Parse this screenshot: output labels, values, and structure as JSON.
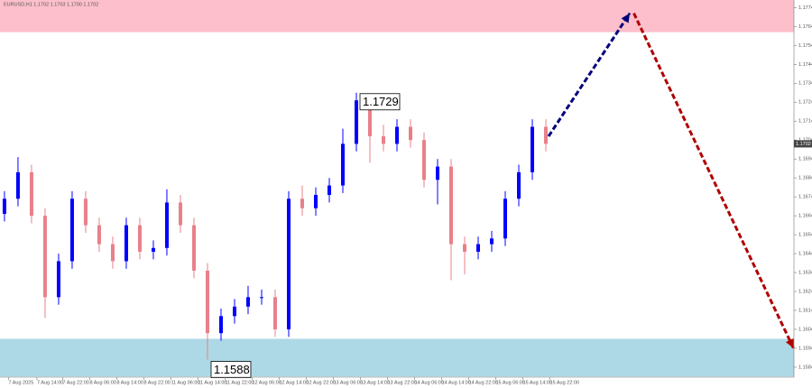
{
  "chart_data": {
    "type": "candlestick",
    "title": "EURUSD,H1 1.1702 1.1703 1.1700 1.1702",
    "x": [
      0,
      1,
      2,
      3,
      4,
      5,
      6,
      7,
      8,
      9,
      10,
      11,
      12,
      13,
      14,
      15,
      16,
      17,
      18,
      19,
      20,
      21,
      22,
      23,
      24,
      25,
      26,
      27,
      28,
      29,
      30,
      31,
      32,
      33,
      34,
      35,
      36,
      37,
      38,
      39,
      40
    ],
    "open": [
      1.1665,
      1.1673,
      1.1687,
      1.1664,
      1.1621,
      1.164,
      1.1673,
      1.1659,
      1.1649,
      1.164,
      1.1659,
      1.1645,
      1.1647,
      1.1671,
      1.1659,
      1.1635,
      1.1602,
      1.1611,
      1.1616,
      1.1621,
      1.1621,
      1.1604,
      1.1673,
      1.1668,
      1.1675,
      1.168,
      1.1702,
      1.1725,
      1.1706,
      1.1702,
      1.1711,
      1.1704,
      1.1683,
      1.169,
      1.1649,
      1.1645,
      1.1649,
      1.1652,
      1.1673,
      1.1687,
      1.1711
    ],
    "high": [
      1.1677,
      1.1695,
      1.1691,
      1.1668,
      1.1644,
      1.1677,
      1.1677,
      1.1663,
      1.1653,
      1.1663,
      1.1663,
      1.1651,
      1.1678,
      1.1675,
      1.1663,
      1.1639,
      1.1615,
      1.162,
      1.1627,
      1.1625,
      1.1625,
      1.1677,
      1.168,
      1.1679,
      1.1684,
      1.171,
      1.1729,
      1.1727,
      1.1712,
      1.1715,
      1.1715,
      1.1708,
      1.1694,
      1.1694,
      1.1653,
      1.1653,
      1.1656,
      1.1677,
      1.1691,
      1.1715,
      1.1715
    ],
    "low": [
      1.1661,
      1.1669,
      1.166,
      1.161,
      1.1617,
      1.1636,
      1.1655,
      1.1645,
      1.1636,
      1.1636,
      1.1641,
      1.1641,
      1.1643,
      1.1655,
      1.1631,
      1.1588,
      1.1598,
      1.1607,
      1.1612,
      1.1617,
      1.16,
      1.16,
      1.1664,
      1.1664,
      1.1671,
      1.1676,
      1.1698,
      1.1692,
      1.1698,
      1.1698,
      1.17,
      1.1679,
      1.167,
      1.163,
      1.1633,
      1.1641,
      1.1645,
      1.1648,
      1.1669,
      1.1683,
      1.1698
    ],
    "close": [
      1.1673,
      1.1687,
      1.1664,
      1.1621,
      1.164,
      1.1673,
      1.1659,
      1.1649,
      1.164,
      1.1659,
      1.1645,
      1.1647,
      1.1671,
      1.1659,
      1.1635,
      1.1602,
      1.1611,
      1.1616,
      1.1621,
      1.1621,
      1.1604,
      1.1673,
      1.1668,
      1.1675,
      1.168,
      1.1702,
      1.1725,
      1.1706,
      1.1702,
      1.1711,
      1.1704,
      1.1683,
      1.169,
      1.1649,
      1.1645,
      1.1649,
      1.1652,
      1.1673,
      1.1687,
      1.1711,
      1.1702
    ],
    "up_color": "#0000ff",
    "down_color": "#e8808a",
    "xlim": [
      -0.33,
      58.33
    ],
    "ylim": [
      1.1573,
      1.1778
    ],
    "xticks": [
      {
        "value": 0.3,
        "label": "7 Aug 2025"
      },
      {
        "value": 2.4,
        "label": "7 Aug 14:00"
      },
      {
        "value": 4.3,
        "label": "7 Aug 22:00"
      },
      {
        "value": 6.3,
        "label": "8 Aug 06:00"
      },
      {
        "value": 8.3,
        "label": "8 Aug 14:00"
      },
      {
        "value": 10.3,
        "label": "8 Aug 22:00"
      },
      {
        "value": 12.3,
        "label": "11 Aug 06:00"
      },
      {
        "value": 14.3,
        "label": "11 Aug 14:00"
      },
      {
        "value": 16.3,
        "label": "11 Aug 22:00"
      },
      {
        "value": 18.3,
        "label": "12 Aug 06:00"
      },
      {
        "value": 20.3,
        "label": "12 Aug 14:00"
      },
      {
        "value": 22.3,
        "label": "12 Aug 22:00"
      },
      {
        "value": 24.3,
        "label": "13 Aug 06:00"
      },
      {
        "value": 26.3,
        "label": "13 Aug 14:00"
      },
      {
        "value": 28.3,
        "label": "13 Aug 22:00"
      },
      {
        "value": 30.3,
        "label": "14 Aug 06:00"
      },
      {
        "value": 32.3,
        "label": "14 Aug 14:00"
      },
      {
        "value": 34.3,
        "label": "14 Aug 22:00"
      },
      {
        "value": 36.3,
        "label": "15 Aug 06:00"
      },
      {
        "value": 38.3,
        "label": "15 Aug 14:00"
      },
      {
        "value": 40.3,
        "label": "15 Aug 22:00"
      }
    ],
    "yticks": [
      1.1774,
      1.1764,
      1.1754,
      1.1744,
      1.1734,
      1.1724,
      1.1714,
      1.1704,
      1.1694,
      1.1684,
      1.1674,
      1.1664,
      1.1654,
      1.1644,
      1.1634,
      1.1624,
      1.1614,
      1.1604,
      1.1594,
      1.1584
    ],
    "zones": [
      {
        "color": "#fcbfcb",
        "from": 1.1761,
        "to": 1.1778
      },
      {
        "color": "#add8e6",
        "from": 1.1579,
        "to": 1.1599
      }
    ],
    "arrows": [
      {
        "color": "#00007a",
        "x": [
          40.2,
          46.2
        ],
        "y": [
          1.1706,
          1.1771
        ]
      },
      {
        "color": "#b00000",
        "x": [
          46.5,
          58.3
        ],
        "y": [
          1.1771,
          1.1594
        ]
      }
    ],
    "annotations": [
      {
        "x": 26,
        "value": 1.1729
      },
      {
        "x": 15,
        "value": 1.1588
      }
    ]
  }
}
